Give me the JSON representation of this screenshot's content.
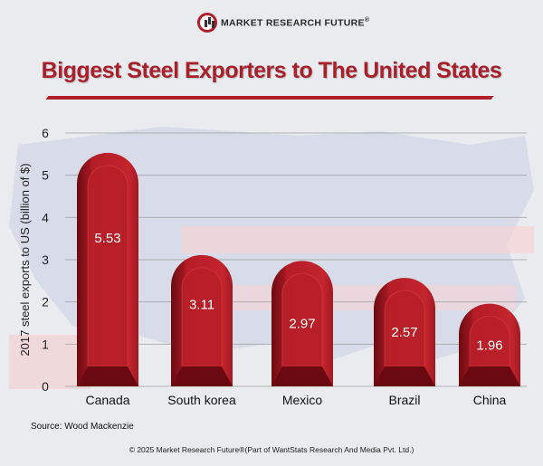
{
  "logo": {
    "text": "MARKET RESEARCH FUTURE",
    "reg": "®"
  },
  "title": "Biggest Steel Exporters to The United States",
  "source": "Source: Wood Mackenzie",
  "copyright": "© 2025 Market Research Future®(Part of WantStats Research And Media Pvt. Ltd.)",
  "colors": {
    "bar": "#b51d27",
    "bar_dark": "#6e0b12",
    "title": "#a7202b"
  },
  "chart_data": {
    "type": "bar",
    "title": "Biggest Steel Exporters to The United States",
    "xlabel": "",
    "ylabel": "2017 steel exports to US (billion of $)",
    "categories": [
      "Canada",
      "South korea",
      "Mexico",
      "Brazil",
      "China"
    ],
    "values": [
      5.53,
      3.11,
      2.97,
      2.57,
      1.96
    ],
    "data_labels": [
      "5.53",
      "3.11",
      "2.97",
      "2.57",
      "1.96"
    ],
    "ylim": [
      0,
      6
    ],
    "yticks": [
      "0",
      "1",
      "2",
      "3",
      "4",
      "5",
      "6"
    ],
    "grid": true,
    "legend": "none"
  }
}
